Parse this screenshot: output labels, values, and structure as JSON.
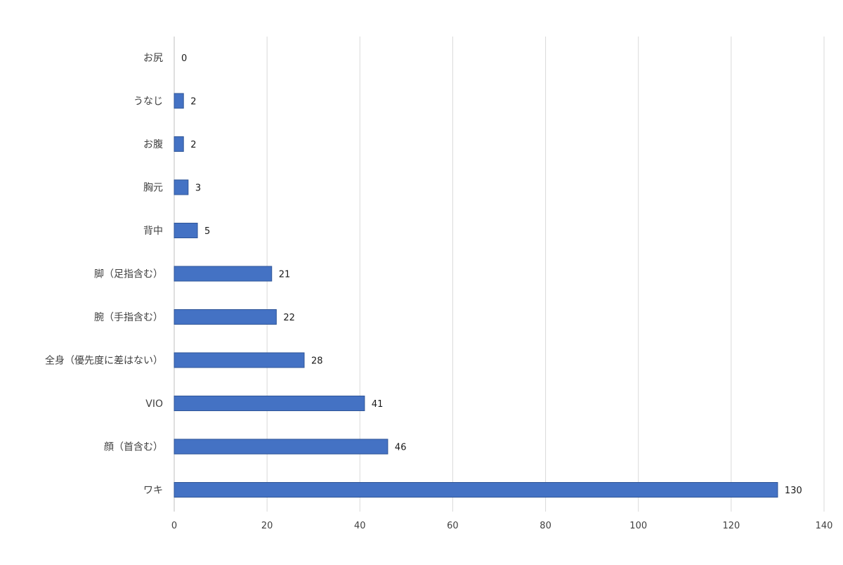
{
  "chart_data": {
    "type": "bar",
    "orientation": "horizontal",
    "categories": [
      "お尻",
      "うなじ",
      "お腹",
      "胸元",
      "背中",
      "脚（足指含む）",
      "腕（手指含む）",
      "全身（優先度に差はない）",
      "VIO",
      "顔（首含む）",
      "ワキ"
    ],
    "values": [
      0,
      2,
      2,
      3,
      5,
      21,
      22,
      28,
      41,
      46,
      130
    ],
    "title": "",
    "xlabel": "",
    "ylabel": "",
    "xlim": [
      0,
      140
    ],
    "x_ticks": [
      0,
      20,
      40,
      60,
      80,
      100,
      120,
      140
    ],
    "grid": "vertical",
    "legend": "none",
    "bar_color": "#4472c4",
    "bar_border_color": "#2f5597",
    "data_labels": true
  }
}
